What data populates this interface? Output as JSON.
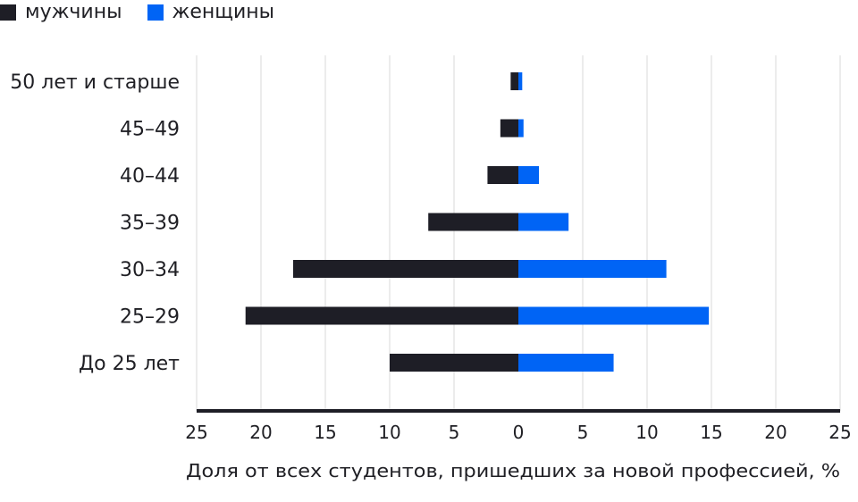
{
  "chart_data": {
    "type": "bar",
    "orientation": "horizontal",
    "layout": "population-pyramid",
    "categories": [
      "50 лет и старше",
      "45–49",
      "40–44",
      "35–39",
      "30–34",
      "25–29",
      "До 25 лет"
    ],
    "series": [
      {
        "name": "мужчины",
        "color": "#1e1e26",
        "side": "left",
        "values": [
          0.6,
          1.4,
          2.4,
          7.0,
          17.5,
          21.2,
          10.0
        ]
      },
      {
        "name": "женщины",
        "color": "#0064f5",
        "side": "right",
        "values": [
          0.3,
          0.4,
          1.6,
          3.9,
          11.5,
          14.8,
          7.4
        ]
      }
    ],
    "xlabel": "Доля от всех студентов, пришедших за новой профессией, %",
    "xlim": [
      -25,
      25
    ],
    "xticks": [
      -25,
      -20,
      -15,
      -10,
      -5,
      0,
      5,
      10,
      15,
      20,
      25
    ],
    "xtick_labels": [
      "25",
      "20",
      "15",
      "10",
      "5",
      "0",
      "5",
      "10",
      "15",
      "20",
      "25"
    ],
    "grid": "vertical",
    "legend": "top-left",
    "axis_color": "#1e1e26",
    "grid_color": "#e6e6e6"
  }
}
